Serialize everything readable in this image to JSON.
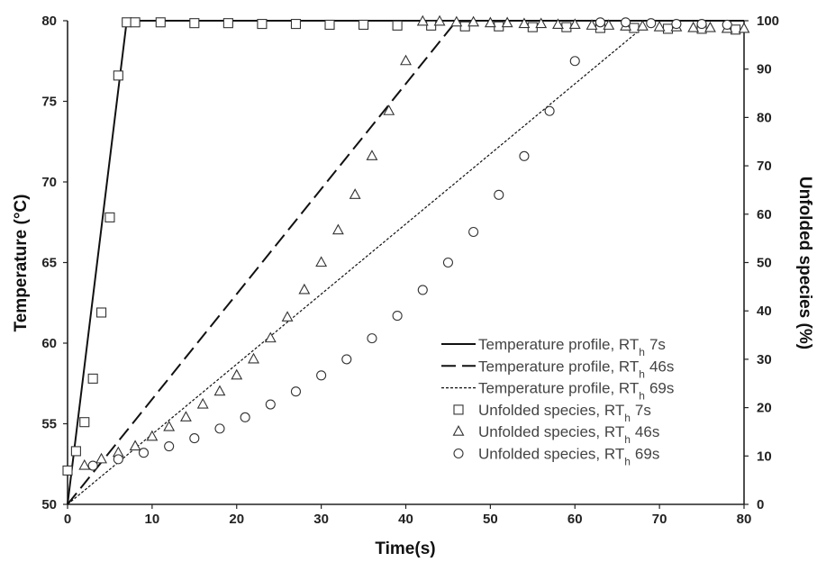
{
  "chart_data": {
    "type": "scatter",
    "title": "",
    "xlabel": "Time(s)",
    "ylabel_left": "Temperature (°C)",
    "ylabel_right": "Unfolded species (%)",
    "xlim": [
      0,
      80
    ],
    "ylim_left": [
      50,
      80
    ],
    "ylim_right": [
      0,
      100
    ],
    "x_ticks": [
      "0",
      "10",
      "20",
      "30",
      "40",
      "50",
      "60",
      "70",
      "80"
    ],
    "y_left_ticks": [
      "50",
      "55",
      "60",
      "65",
      "70",
      "75",
      "80"
    ],
    "y_right_ticks": [
      "0",
      "10",
      "20",
      "30",
      "40",
      "50",
      "60",
      "70",
      "80",
      "90",
      "100"
    ],
    "grid": false,
    "legend_position": "bottom-right",
    "series": [
      {
        "name": "Temperature profile, RT",
        "subscript": "h",
        "suffix": "7s",
        "kind": "line",
        "dash": "solid",
        "axis": "left",
        "x": [
          0,
          7,
          80
        ],
        "y": [
          50,
          80,
          80
        ]
      },
      {
        "name": "Temperature profile, RT",
        "subscript": "h",
        "suffix": "46s",
        "kind": "line",
        "dash": "long-dash",
        "axis": "left",
        "x": [
          0,
          46,
          80
        ],
        "y": [
          50,
          80,
          80
        ]
      },
      {
        "name": "Temperature profile, RT",
        "subscript": "h",
        "suffix": "69s",
        "kind": "line",
        "dash": "dotted",
        "axis": "left",
        "x": [
          0,
          69,
          80
        ],
        "y": [
          50,
          80,
          80
        ]
      },
      {
        "name": "Unfolded species, RT",
        "subscript": "h",
        "suffix": "7s",
        "kind": "marker",
        "marker": "square",
        "axis": "left",
        "x": [
          0,
          1,
          2,
          3,
          4,
          5,
          6,
          7,
          8,
          11,
          15,
          19,
          23,
          27,
          31,
          35,
          39,
          43,
          47,
          51,
          55,
          59,
          63,
          67,
          71,
          75,
          79
        ],
        "y": [
          52.1,
          53.3,
          55.1,
          57.8,
          61.9,
          67.8,
          76.6,
          79.9,
          79.9,
          79.9,
          79.85,
          79.85,
          79.8,
          79.8,
          79.75,
          79.75,
          79.7,
          79.7,
          79.65,
          79.65,
          79.6,
          79.6,
          79.55,
          79.55,
          79.5,
          79.5,
          79.45
        ]
      },
      {
        "name": "Unfolded species, RT",
        "subscript": "h",
        "suffix": "46s",
        "kind": "marker",
        "marker": "triangle",
        "axis": "left",
        "x": [
          2,
          4,
          6,
          8,
          10,
          12,
          14,
          16,
          18,
          20,
          22,
          24,
          26,
          28,
          30,
          32,
          34,
          36,
          38,
          40,
          42,
          44,
          46,
          48,
          50,
          52,
          54,
          56,
          58,
          60,
          62,
          64,
          66,
          68,
          70,
          72,
          74,
          76,
          78,
          80
        ],
        "y": [
          52.4,
          52.8,
          53.2,
          53.6,
          54.2,
          54.8,
          55.4,
          56.2,
          57.0,
          58.0,
          59.0,
          60.3,
          61.6,
          63.3,
          65.0,
          67.0,
          69.2,
          71.6,
          74.4,
          77.5,
          79.95,
          79.95,
          79.9,
          79.9,
          79.85,
          79.85,
          79.8,
          79.8,
          79.75,
          79.75,
          79.7,
          79.7,
          79.65,
          79.65,
          79.6,
          79.6,
          79.55,
          79.55,
          79.5,
          79.5
        ]
      },
      {
        "name": "Unfolded species, RT",
        "subscript": "h",
        "suffix": "69s",
        "kind": "marker",
        "marker": "circle",
        "axis": "left",
        "x": [
          3,
          6,
          9,
          12,
          15,
          18,
          21,
          24,
          27,
          30,
          33,
          36,
          39,
          42,
          45,
          48,
          51,
          54,
          57,
          60,
          63,
          66,
          69,
          72,
          75,
          78
        ],
        "y": [
          52.4,
          52.8,
          53.2,
          53.6,
          54.1,
          54.7,
          55.4,
          56.2,
          57.0,
          58.0,
          59.0,
          60.3,
          61.7,
          63.3,
          65.0,
          66.9,
          69.2,
          71.6,
          74.4,
          77.5,
          79.9,
          79.9,
          79.85,
          79.8,
          79.8,
          79.75
        ]
      }
    ]
  }
}
